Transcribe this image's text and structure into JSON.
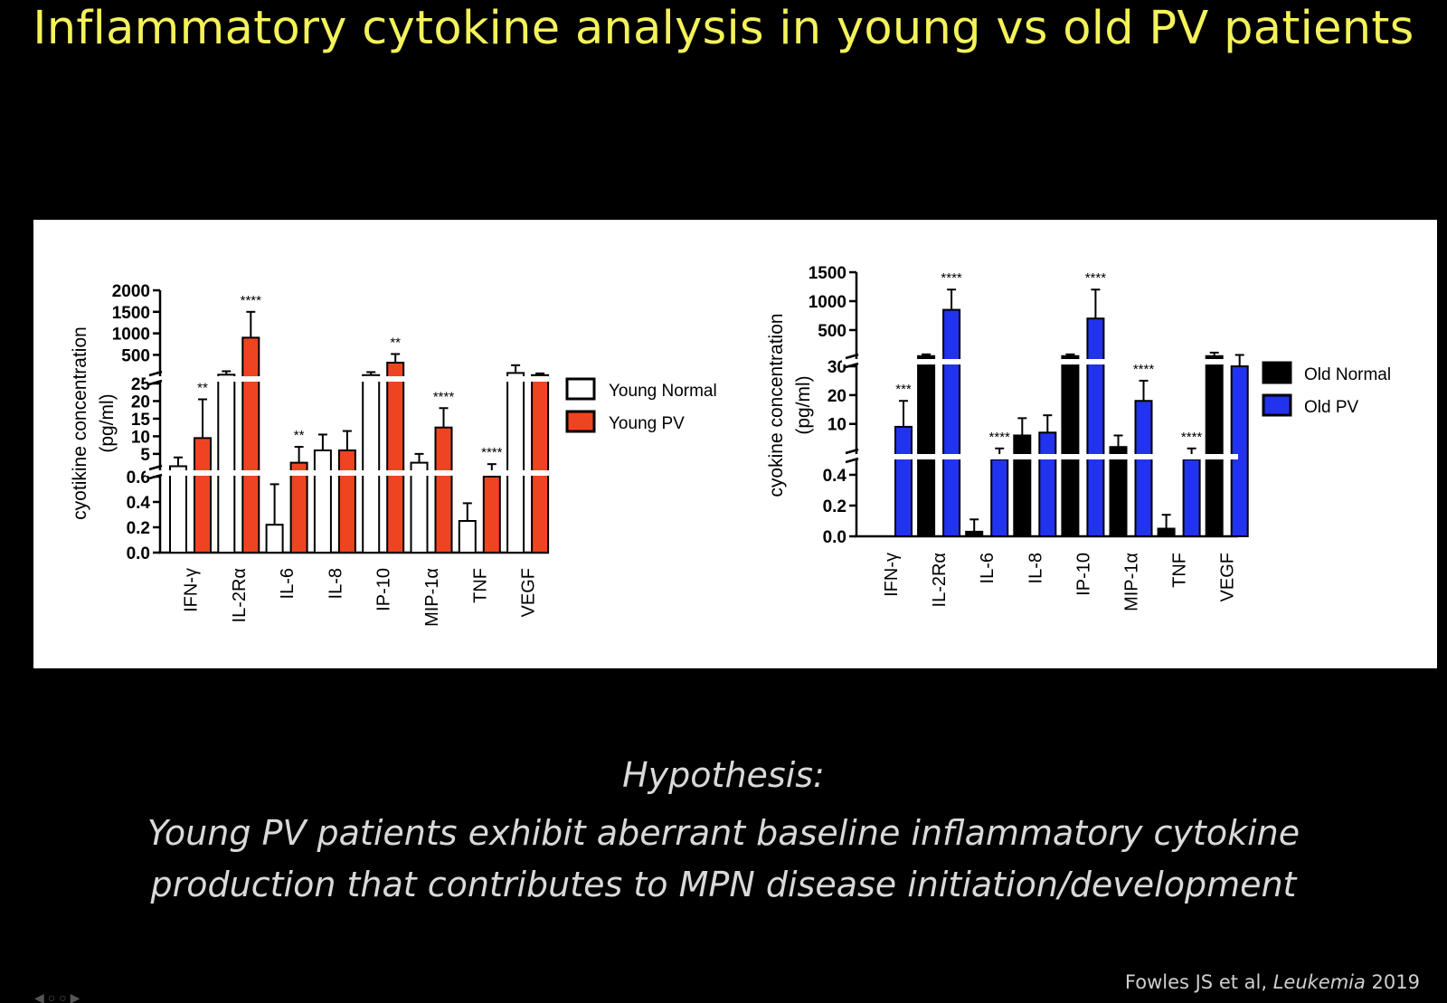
{
  "slide": {
    "title": "Inflammatory cytokine analysis in young vs old PV patients",
    "hypothesis_heading": "Hypothesis:",
    "hypothesis_line1": "Young PV patients exhibit aberrant baseline inflammatory cytokine",
    "hypothesis_line2": "production that contributes to MPN disease initiation/development",
    "citation_authors": "Fowles JS et al, ",
    "citation_journal": "Leukemia",
    "citation_year": " 2019"
  },
  "chart_data": [
    {
      "type": "bar",
      "ylabel": "cyotikine concentration\n(pg/ml)",
      "categories": [
        "IFN-γ",
        "IL-2Rα",
        "IL-6",
        "IL-8",
        "IP-10",
        "MIP-1α",
        "TNF",
        "VEGF"
      ],
      "y_axis_segments": [
        {
          "range": [
            0,
            0.6
          ],
          "ticks": [
            "0.0",
            "0.2",
            "0.4",
            "0.6"
          ]
        },
        {
          "range": [
            0,
            25
          ],
          "ticks": [
            "5",
            "10",
            "15",
            "20",
            "25"
          ]
        },
        {
          "range": [
            0,
            2000
          ],
          "ticks": [
            "500",
            "1000",
            "1500",
            "2000"
          ]
        }
      ],
      "series": [
        {
          "name": "Young Normal",
          "color": "#ffffff",
          "values": [
            1.5,
            40,
            0.22,
            6,
            30,
            2.5,
            0.25,
            80
          ],
          "errors": [
            2.5,
            80,
            0.32,
            4.5,
            70,
            2.5,
            0.14,
            180
          ]
        },
        {
          "name": "Young PV",
          "color": "#ee4422",
          "values": [
            9.5,
            900,
            2.5,
            6,
            320,
            12.5,
            0.6,
            30
          ],
          "errors": [
            11,
            600,
            4.5,
            5.5,
            200,
            5.5,
            1.5,
            40
          ]
        }
      ],
      "significance": [
        "**",
        "****",
        "**",
        "",
        "**",
        "****",
        "****",
        ""
      ],
      "legend_position": "right"
    },
    {
      "type": "bar",
      "ylabel": "cyokine concentration\n(pg/ml)",
      "categories": [
        "IFN-γ",
        "IL-2Rα",
        "IL-6",
        "IL-8",
        "IP-10",
        "MIP-1α",
        "TNF",
        "VEGF"
      ],
      "y_axis_segments": [
        {
          "range": [
            0,
            0.5
          ],
          "ticks": [
            "0.0",
            "0.2",
            "0.4"
          ]
        },
        {
          "range": [
            0,
            30
          ],
          "ticks": [
            "10",
            "20",
            "30"
          ]
        },
        {
          "range": [
            0,
            1500
          ],
          "ticks": [
            "500",
            "1000",
            "1500"
          ]
        }
      ],
      "series": [
        {
          "name": "Old Normal",
          "color": "#000000",
          "values": [
            0,
            50,
            0.03,
            6,
            50,
            2,
            0.05,
            50
          ],
          "errors": [
            0,
            30,
            0.08,
            6,
            30,
            4,
            0.09,
            60
          ]
        },
        {
          "name": "Old PV",
          "color": "#2233ee",
          "values": [
            9,
            850,
            0.5,
            7,
            700,
            18,
            0.5,
            30
          ],
          "errors": [
            9,
            350,
            1,
            6,
            500,
            7,
            1,
            40
          ]
        }
      ],
      "significance": [
        "***",
        "****",
        "****",
        "",
        "****",
        "****",
        "****",
        ""
      ],
      "legend_position": "right"
    }
  ]
}
